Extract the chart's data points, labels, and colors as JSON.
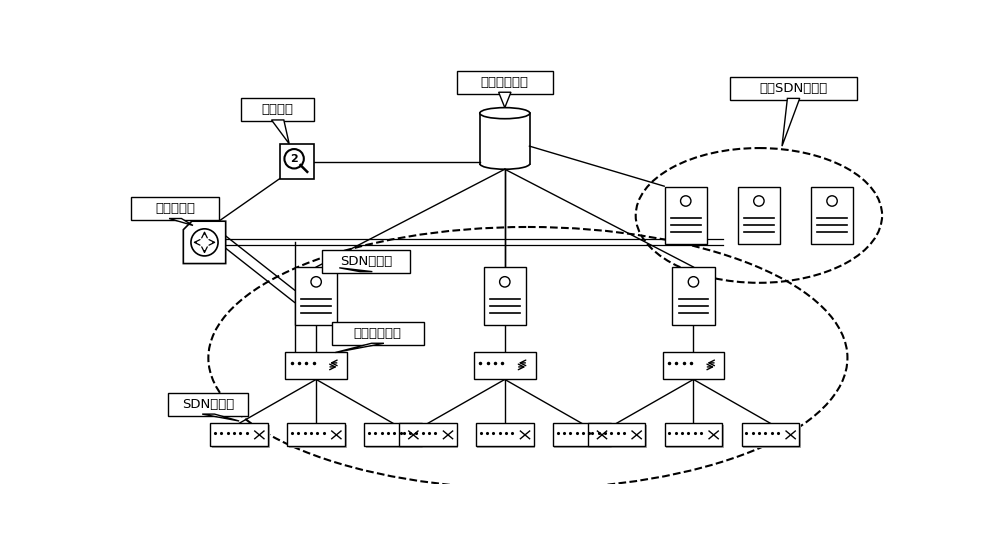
{
  "bg_color": "#ffffff",
  "labels": {
    "global_backup": "全局备份模块",
    "decision": "决策模块",
    "preconnect": "预连接模块",
    "sdn_controller_label": "SDN控制器",
    "command_proxy": "指令代理模块",
    "sdn_switch_label": "SDN交换机",
    "redundant_sdn": "冗余SDN控制器"
  },
  "font_size": 9.5
}
